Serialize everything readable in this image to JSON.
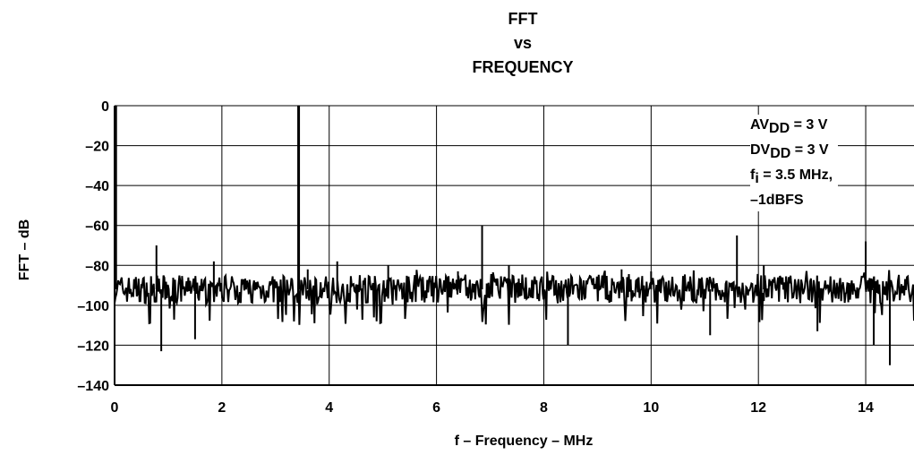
{
  "chart_data": {
    "type": "line",
    "title_lines": [
      "FFT",
      "vs",
      "FREQUENCY"
    ],
    "xlabel": "f – Frequency – MHz",
    "ylabel": "FFT – dB",
    "xlim": [
      0,
      14.9
    ],
    "ylim": [
      -140,
      0
    ],
    "xticks": [
      0,
      2,
      4,
      6,
      8,
      10,
      12,
      14
    ],
    "yticks": [
      0,
      -20,
      -40,
      -60,
      -80,
      -100,
      -120,
      -140
    ],
    "ytick_labels": [
      "0",
      "–20",
      "–40",
      "–60",
      "–80",
      "–100",
      "–120",
      "–140"
    ],
    "grid": true,
    "annotation": {
      "avdd_prefix": "AV",
      "avdd_sub": "DD",
      "avdd_value": " = 3 V",
      "dvdd_prefix": "DV",
      "dvdd_sub": "DD",
      "dvdd_value": " = 3 V",
      "fi_prefix": "f",
      "fi_sub": "i",
      "fi_value": " = 3.5 MHz,",
      "level": "–1dBFS"
    },
    "noise_floor_db": -92,
    "series": [
      {
        "x": [
          0.02,
          0.78,
          0.87,
          1.5,
          1.85,
          3.43,
          3.6,
          4.15,
          5.1,
          6.4,
          6.85,
          7.35,
          8.45,
          9.45,
          10.0,
          11.1,
          11.6,
          12.1,
          13.1,
          14.0,
          14.15,
          14.45
        ],
        "y": [
          0,
          -70,
          -123,
          -117,
          -78,
          0,
          -82,
          -78,
          -80,
          -83,
          -60,
          -80,
          -120,
          -82,
          -83,
          -115,
          -65,
          -80,
          -113,
          -68,
          -120,
          -130
        ]
      }
    ]
  }
}
